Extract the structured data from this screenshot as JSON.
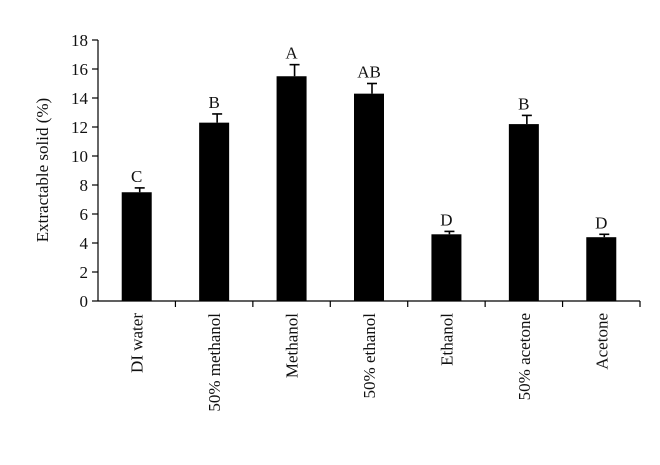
{
  "chart_data": {
    "type": "bar",
    "title": "",
    "xlabel": "",
    "ylabel": "Extractable solid (%)",
    "ylim": [
      0,
      18
    ],
    "yticks": [
      0,
      2,
      4,
      6,
      8,
      10,
      12,
      14,
      16,
      18
    ],
    "categories": [
      "DI water",
      "50% methanol",
      "Methanol",
      "50% ethanol",
      "Ethanol",
      "50% acetone",
      "Acetone"
    ],
    "values": [
      7.5,
      12.3,
      15.5,
      14.3,
      4.6,
      12.2,
      4.4
    ],
    "errors": [
      0.3,
      0.6,
      0.8,
      0.7,
      0.2,
      0.6,
      0.2
    ],
    "annotations": [
      "C",
      "B",
      "A",
      "AB",
      "D",
      "B",
      "D"
    ],
    "bar_color": "#000000",
    "grid": false,
    "legend": "none"
  }
}
